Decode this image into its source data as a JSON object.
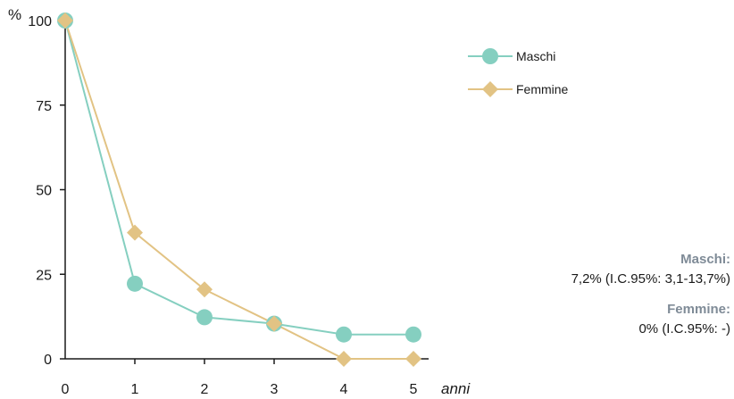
{
  "chart_data": {
    "type": "line",
    "x": [
      0,
      1,
      2,
      3,
      4,
      5
    ],
    "x_ticks": [
      "0",
      "1",
      "2",
      "3",
      "4",
      "5"
    ],
    "y_ticks": [
      "0",
      "25",
      "50",
      "75",
      "100"
    ],
    "xlabel": "anni",
    "ylabel": "%",
    "xlim": [
      0,
      5
    ],
    "ylim": [
      0,
      100
    ],
    "grid": false,
    "legend_position": "top-right",
    "series": [
      {
        "name": "Maschi",
        "color": "#85cfc0",
        "marker": "circle",
        "values": [
          100,
          22.2,
          12.3,
          10.4,
          7.2,
          7.2
        ]
      },
      {
        "name": "Femmine",
        "color": "#e2c384",
        "marker": "diamond",
        "values": [
          100,
          37.3,
          20.5,
          10.4,
          0,
          0
        ]
      }
    ]
  },
  "notes": [
    {
      "title": "Maschi:",
      "value": "7,2% (I.C.95%: 3,1-13,7%)"
    },
    {
      "title": "Femmine:",
      "value": "0% (I.C.95%: -)"
    }
  ]
}
